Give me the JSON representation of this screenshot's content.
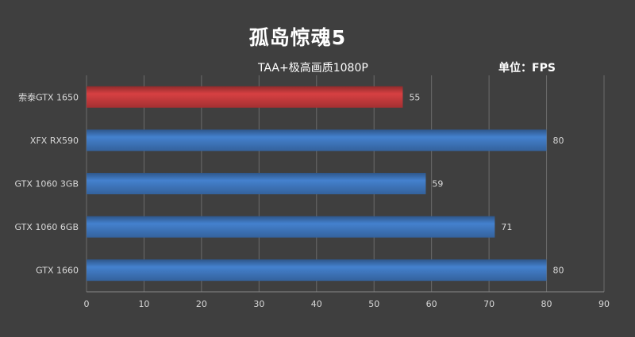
{
  "chart_data": {
    "type": "bar",
    "orientation": "horizontal",
    "title": "孤岛惊魂5",
    "subtitle": "TAA+极高画质1080P",
    "unit_label": "单位：FPS",
    "categories": [
      "索泰GTX 1650",
      "XFX RX590",
      "GTX 1060 3GB",
      "GTX 1060 6GB",
      "GTX 1660"
    ],
    "values": [
      55,
      80,
      59,
      71,
      80
    ],
    "highlight_index": 0,
    "colors": {
      "highlight": "#c0393b",
      "bar": "#3d73b8",
      "grid": "#6b6b6b",
      "text": "#ffffff",
      "label": "#d9d9d9"
    },
    "xlim": [
      0,
      90
    ],
    "xticks": [
      0,
      10,
      20,
      30,
      40,
      50,
      60,
      70,
      80,
      90
    ],
    "grid": true,
    "data_labels": true
  }
}
